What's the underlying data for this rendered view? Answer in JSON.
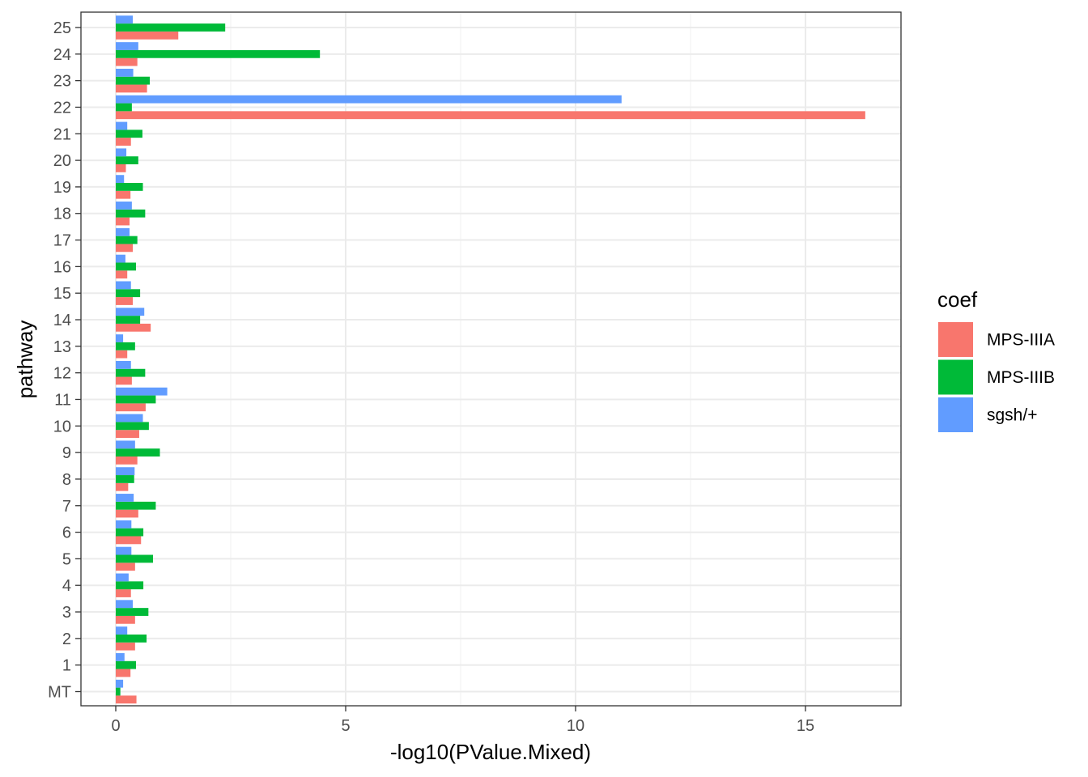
{
  "chart_data": {
    "type": "bar",
    "orientation": "horizontal",
    "xlabel": "-log10(PValue.Mixed)",
    "ylabel": "pathway",
    "xlim": [
      -0.75,
      17.1
    ],
    "x_ticks": [
      0,
      5,
      10,
      15
    ],
    "x_minor_ticks": [
      2.5,
      7.5,
      12.5
    ],
    "grid": true,
    "legend_position": "right",
    "legend_title": "coef",
    "categories": [
      "MT",
      "1",
      "2",
      "3",
      "4",
      "5",
      "6",
      "7",
      "8",
      "9",
      "10",
      "11",
      "12",
      "13",
      "14",
      "15",
      "16",
      "17",
      "18",
      "19",
      "20",
      "21",
      "22",
      "23",
      "24",
      "25"
    ],
    "series": [
      {
        "name": "MPS-IIIA",
        "color": "#F8766D",
        "values": [
          0.45,
          0.32,
          0.42,
          0.42,
          0.33,
          0.42,
          0.55,
          0.49,
          0.27,
          0.47,
          0.51,
          0.65,
          0.35,
          0.25,
          0.76,
          0.37,
          0.25,
          0.37,
          0.3,
          0.32,
          0.22,
          0.33,
          16.3,
          0.68,
          0.47,
          1.36
        ]
      },
      {
        "name": "MPS-IIIB",
        "color": "#00BA38",
        "values": [
          0.1,
          0.44,
          0.67,
          0.71,
          0.6,
          0.81,
          0.6,
          0.87,
          0.4,
          0.96,
          0.72,
          0.87,
          0.64,
          0.42,
          0.53,
          0.53,
          0.44,
          0.47,
          0.64,
          0.59,
          0.49,
          0.58,
          0.35,
          0.74,
          4.44,
          2.38
        ]
      },
      {
        "name": "sgsh/+",
        "color": "#619CFF",
        "values": [
          0.16,
          0.19,
          0.25,
          0.37,
          0.28,
          0.34,
          0.34,
          0.39,
          0.41,
          0.42,
          0.59,
          1.12,
          0.33,
          0.16,
          0.62,
          0.33,
          0.21,
          0.3,
          0.35,
          0.18,
          0.23,
          0.25,
          11.0,
          0.38,
          0.49,
          0.37
        ]
      }
    ]
  }
}
